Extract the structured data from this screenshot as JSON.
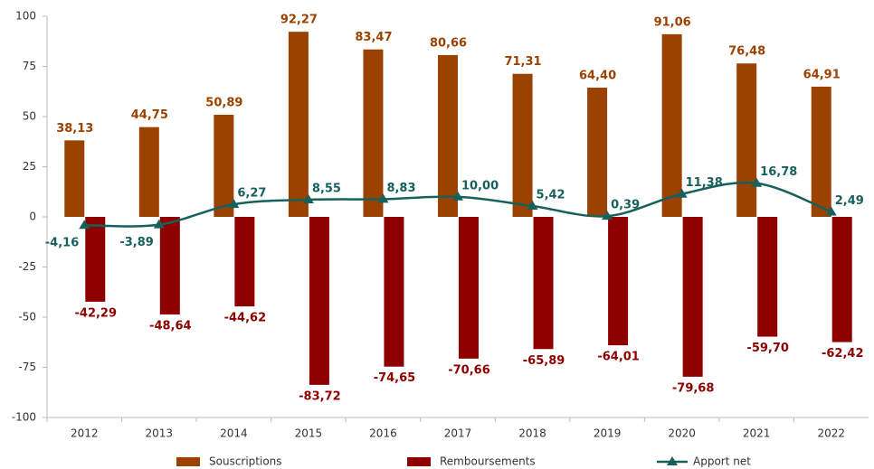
{
  "chart_data": {
    "type": "bar-line",
    "categories": [
      "2012",
      "2013",
      "2014",
      "2015",
      "2016",
      "2017",
      "2018",
      "2019",
      "2020",
      "2021",
      "2022"
    ],
    "ylim": [
      -100,
      100
    ],
    "yticks": [
      -100,
      -75,
      -50,
      -25,
      0,
      25,
      50,
      75,
      100
    ],
    "grid": false,
    "legend": "bottom",
    "series": [
      {
        "name": "Souscriptions",
        "type": "bar",
        "color": "#9b4200",
        "values": [
          38.13,
          44.75,
          50.89,
          92.27,
          83.47,
          80.66,
          71.31,
          64.4,
          91.06,
          76.48,
          64.91
        ],
        "value_labels": [
          "38,13",
          "44,75",
          "50,89",
          "92,27",
          "83,47",
          "80,66",
          "71,31",
          "64,40",
          "91,06",
          "76,48",
          "64,91"
        ]
      },
      {
        "name": "Remboursements",
        "type": "bar",
        "color": "#8e0000",
        "values": [
          -42.29,
          -48.64,
          -44.62,
          -83.72,
          -74.65,
          -70.66,
          -65.89,
          -64.01,
          -79.68,
          -59.7,
          -62.42
        ],
        "value_labels": [
          "-42,29",
          "-48,64",
          "-44,62",
          "-83,72",
          "-74,65",
          "-70,66",
          "-65,89",
          "-64,01",
          "-79,68",
          "-59,70",
          "-62,42"
        ]
      },
      {
        "name": "Apport net",
        "type": "line",
        "color": "#17615c",
        "values": [
          -4.16,
          -3.89,
          6.27,
          8.55,
          8.83,
          10.0,
          5.42,
          0.39,
          11.38,
          16.78,
          2.49
        ],
        "value_labels": [
          "-4,16",
          "-3,89",
          "6,27",
          "8,55",
          "8,83",
          "10,00",
          "5,42",
          "0,39",
          "11,38",
          "16,78",
          "2,49"
        ]
      }
    ]
  }
}
